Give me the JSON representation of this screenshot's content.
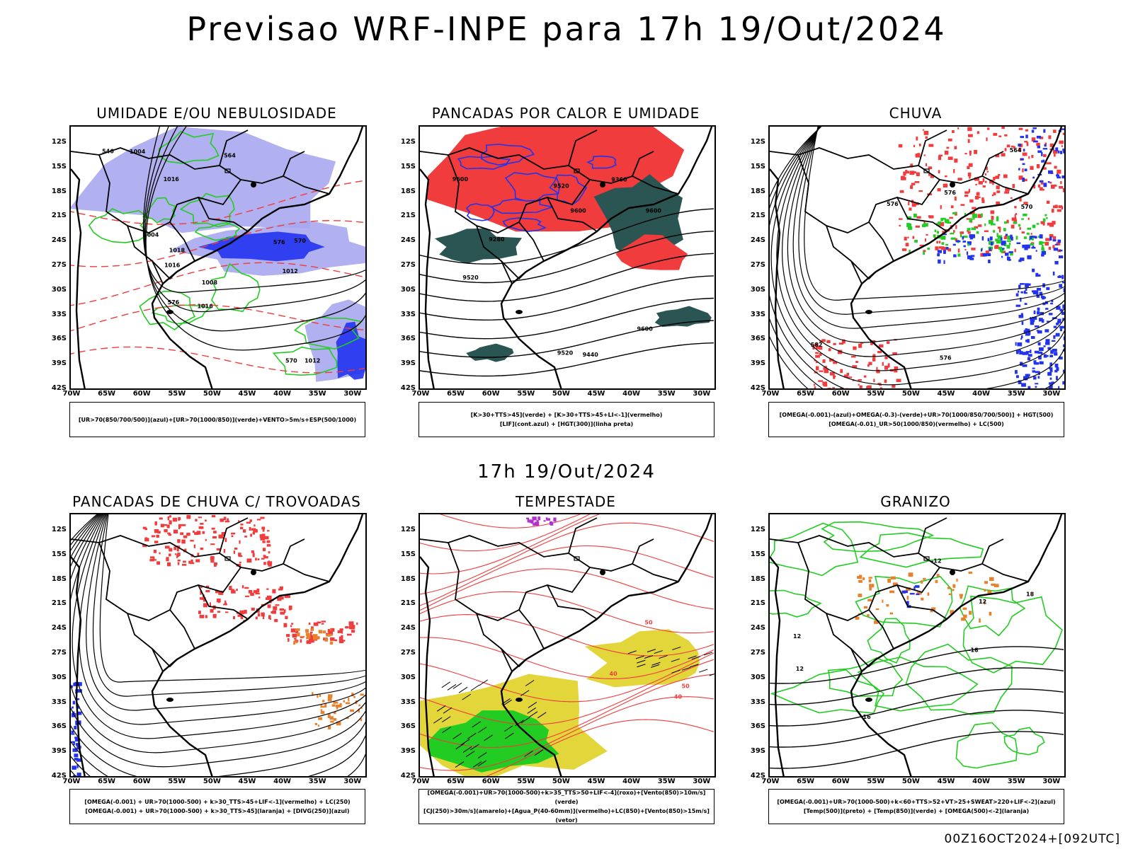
{
  "title": "Previsao WRF-INPE  para 17h 19/Out/2024",
  "middle_time": "17h 19/Out/2024",
  "footer": "00Z16OCT2024+[092UTC]",
  "lat_labels": [
    "12S",
    "15S",
    "18S",
    "21S",
    "24S",
    "27S",
    "30S",
    "33S",
    "36S",
    "39S",
    "42S"
  ],
  "lon_labels": [
    "70W",
    "65W",
    "60W",
    "55W",
    "50W",
    "45W",
    "40W",
    "35W",
    "30W"
  ],
  "colors": {
    "red": "#f03c3c",
    "green": "#22cc22",
    "blue": "#2233ee",
    "lavender": "#a9a9f0",
    "darkgreen": "#2b5553",
    "yellow": "#e3d63a",
    "orange": "#e8812c",
    "purple": "#b42fd0"
  },
  "panels": [
    {
      "id": "umidade",
      "title": "UMIDADE E/OU NEBULOSIDADE",
      "legend": [
        "[UR>70(850/700/500)](azul)+[UR>70(1000/850)](verde)+VENTO>5m/s+ESP(500/1000)"
      ],
      "contour_labels": [
        "1008",
        "1004",
        "1004",
        "1012",
        "1012",
        "1016",
        "1016",
        "1016",
        "576",
        "576",
        "570",
        "564",
        "546",
        "570",
        "1018"
      ]
    },
    {
      "id": "pancadas-calor",
      "title": "PANCADAS POR CALOR E UMIDADE",
      "legend": [
        "[K>30+TTS>45](verde) + [K>30+TTS>45+LI<-1](vermelho)",
        "[LIF](cont.azul) + [HGT(300)](linha preta)"
      ],
      "contour_labels": [
        "9600",
        "9600",
        "9600",
        "9600",
        "9520",
        "9520",
        "9440",
        "9360",
        "9280",
        "9520"
      ]
    },
    {
      "id": "chuva",
      "title": "CHUVA",
      "legend": [
        "[OMEGA(-0.001)-(azul)+OMEGA(-0.3)-(verde)+UR>70(1000/850/700/500)] + HGT(500)",
        "[OMEGA(-0.01)_UR>50(1000/850)(vermelho) + LC(500)"
      ],
      "contour_labels": [
        "576",
        "576",
        "570",
        "564",
        "582",
        "576"
      ]
    },
    {
      "id": "pancadas-trovoadas",
      "title": "PANCADAS DE CHUVA C/ TROVOADAS",
      "legend": [
        "[OMEGA(-0.001) + UR>70(1000-500) + k>30_TTS>45+LIF<-1](vermelho) + LC(250)",
        "[OMEGA(-0.001) + UR>70(1000-500) + k>30_TTS>45](laranja) + [DIVG(250)](azul)"
      ],
      "contour_labels": []
    },
    {
      "id": "tempestade",
      "title": "TEMPESTADE",
      "legend": [
        "[OMEGA(-0.001)+UR>70(1000-500)+k>35_TTS>50+LIF<-4](roxo)+[Vento(850)>10m/s](verde)",
        "[CJ(250)>30m/s](amarelo)+[Agua_P(40-60mm)](vermelho)+LC(850)+[Vento(850)>15m/s](vetor)"
      ],
      "contour_labels": [
        "40",
        "50",
        "50",
        "40"
      ]
    },
    {
      "id": "granizo",
      "title": "GRANIZO",
      "legend": [
        "[OMEGA(-0.001)+UR>70(1000-500)+k<60+TTS>52+VT>25+SWEAT>220+LIF<-2](azul)",
        "[Temp(500)](preto) + [Temp(850)](verde) + [OMEGA(500)<-2](laranja)"
      ],
      "contour_labels": [
        "12",
        "-12",
        "-18",
        "12",
        "16",
        "18",
        "12"
      ]
    }
  ]
}
